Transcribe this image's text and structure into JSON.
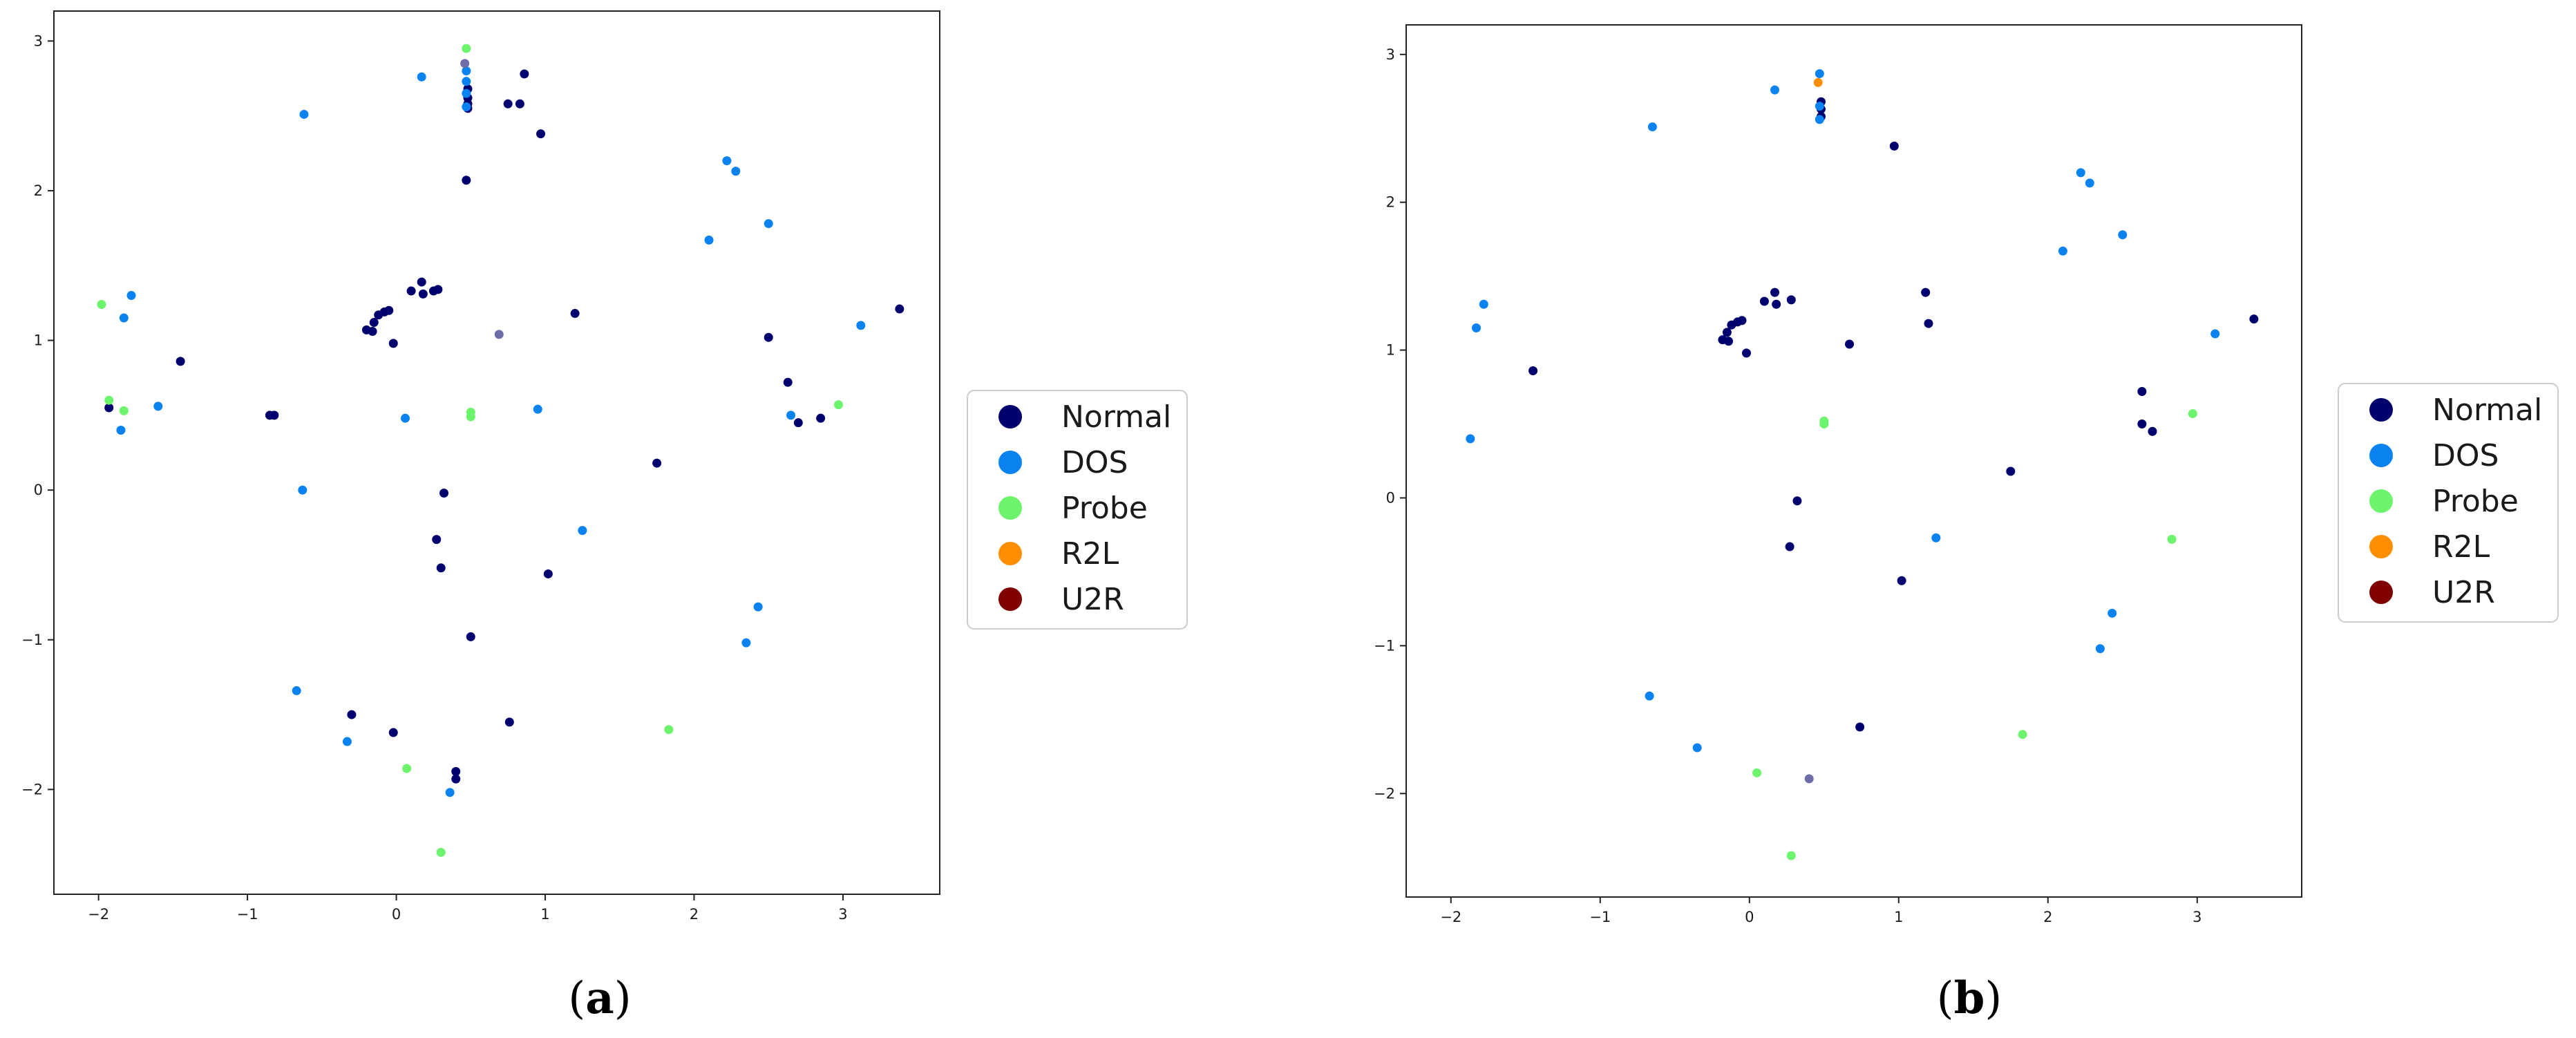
{
  "colors": {
    "Normal": "#00006e",
    "DOS": "#0a82f0",
    "Probe": "#6cf46c",
    "R2L": "#ff8f00",
    "U2R": "#800000",
    "mixed": "#6d6daa"
  },
  "chart_data": [
    {
      "type": "scatter",
      "caption": {
        "open": "(",
        "letter": "a",
        "close": ")"
      },
      "xlim": [
        -2.3,
        3.65
      ],
      "ylim": [
        -2.7,
        3.2
      ],
      "x_ticks": [
        -2,
        -1,
        0,
        1,
        2,
        3
      ],
      "x_tick_labels": [
        "−2",
        "−1",
        "0",
        "1",
        "2",
        "3"
      ],
      "y_ticks": [
        -2,
        -1,
        0,
        1,
        2,
        3
      ],
      "y_tick_labels": [
        "−2",
        "−1",
        "0",
        "1",
        "2",
        "3"
      ],
      "legend_placement": "right",
      "legend": [
        "Normal",
        "DOS",
        "Probe",
        "R2L",
        "U2R"
      ],
      "series": [
        {
          "name": "Normal",
          "points": [
            [
              0.48,
              2.68
            ],
            [
              0.48,
              2.62
            ],
            [
              0.48,
              2.58
            ],
            [
              0.48,
              2.55
            ],
            [
              0.75,
              2.58
            ],
            [
              0.83,
              2.58
            ],
            [
              0.86,
              2.78
            ],
            [
              0.97,
              2.38
            ],
            [
              0.47,
              2.07
            ],
            [
              -0.12,
              1.17
            ],
            [
              -0.08,
              1.19
            ],
            [
              -0.05,
              1.2
            ],
            [
              -0.15,
              1.12
            ],
            [
              -0.2,
              1.07
            ],
            [
              -0.16,
              1.06
            ],
            [
              -0.02,
              0.98
            ],
            [
              0.1,
              1.33
            ],
            [
              0.17,
              1.39
            ],
            [
              0.18,
              1.31
            ],
            [
              0.25,
              1.33
            ],
            [
              0.28,
              1.34
            ],
            [
              1.2,
              1.18
            ],
            [
              -1.45,
              0.86
            ],
            [
              -0.85,
              0.5
            ],
            [
              -0.82,
              0.5
            ],
            [
              -1.93,
              0.55
            ],
            [
              2.5,
              1.02
            ],
            [
              2.63,
              0.72
            ],
            [
              2.7,
              0.45
            ],
            [
              2.85,
              0.48
            ],
            [
              3.38,
              1.21
            ],
            [
              0.32,
              -0.02
            ],
            [
              0.27,
              -0.33
            ],
            [
              0.3,
              -0.52
            ],
            [
              1.02,
              -0.56
            ],
            [
              1.75,
              0.18
            ],
            [
              0.5,
              -0.98
            ],
            [
              -0.3,
              -1.5
            ],
            [
              -0.02,
              -1.62
            ],
            [
              0.76,
              -1.55
            ],
            [
              0.4,
              -1.88
            ],
            [
              0.4,
              -1.93
            ]
          ]
        },
        {
          "name": "DOS",
          "points": [
            [
              -0.62,
              2.51
            ],
            [
              0.17,
              2.76
            ],
            [
              0.47,
              2.8
            ],
            [
              0.47,
              2.73
            ],
            [
              0.47,
              2.65
            ],
            [
              0.47,
              2.56
            ],
            [
              2.22,
              2.2
            ],
            [
              2.28,
              2.13
            ],
            [
              2.1,
              1.67
            ],
            [
              2.5,
              1.78
            ],
            [
              -1.78,
              1.3
            ],
            [
              -1.83,
              1.15
            ],
            [
              -1.6,
              0.56
            ],
            [
              -1.85,
              0.4
            ],
            [
              0.06,
              0.48
            ],
            [
              0.95,
              0.54
            ],
            [
              2.65,
              0.5
            ],
            [
              3.12,
              1.1
            ],
            [
              -0.63,
              0.0
            ],
            [
              1.25,
              -0.27
            ],
            [
              2.43,
              -0.78
            ],
            [
              2.35,
              -1.02
            ],
            [
              -0.67,
              -1.34
            ],
            [
              -0.33,
              -1.68
            ],
            [
              0.36,
              -2.02
            ]
          ]
        },
        {
          "name": "Probe",
          "points": [
            [
              0.47,
              2.95
            ],
            [
              -1.98,
              1.24
            ],
            [
              -1.93,
              0.6
            ],
            [
              -1.83,
              0.53
            ],
            [
              0.5,
              0.52
            ],
            [
              0.5,
              0.49
            ],
            [
              2.97,
              0.57
            ],
            [
              1.83,
              -1.6
            ],
            [
              0.07,
              -1.86
            ],
            [
              0.3,
              -2.42
            ]
          ]
        },
        {
          "name": "mixed",
          "points": [
            [
              0.46,
              2.85
            ],
            [
              0.69,
              1.04
            ]
          ]
        }
      ]
    },
    {
      "type": "scatter",
      "caption": {
        "open": "(",
        "letter": "b",
        "close": ")"
      },
      "xlim": [
        -2.3,
        3.7
      ],
      "ylim": [
        -2.7,
        3.2
      ],
      "x_ticks": [
        -2,
        -1,
        0,
        1,
        2,
        3
      ],
      "x_tick_labels": [
        "−2",
        "−1",
        "0",
        "1",
        "2",
        "3"
      ],
      "y_ticks": [
        -2,
        -1,
        0,
        1,
        2,
        3
      ],
      "y_tick_labels": [
        "−2",
        "−1",
        "0",
        "1",
        "2",
        "3"
      ],
      "legend_placement": "right",
      "legend": [
        "Normal",
        "DOS",
        "Probe",
        "R2L",
        "U2R"
      ],
      "series": [
        {
          "name": "Normal",
          "points": [
            [
              0.48,
              2.68
            ],
            [
              0.48,
              2.63
            ],
            [
              0.48,
              2.58
            ],
            [
              0.97,
              2.38
            ],
            [
              -0.12,
              1.17
            ],
            [
              -0.08,
              1.19
            ],
            [
              -0.05,
              1.2
            ],
            [
              -0.15,
              1.12
            ],
            [
              -0.18,
              1.07
            ],
            [
              -0.14,
              1.06
            ],
            [
              -0.02,
              0.98
            ],
            [
              0.1,
              1.33
            ],
            [
              0.17,
              1.39
            ],
            [
              0.18,
              1.31
            ],
            [
              0.28,
              1.34
            ],
            [
              0.67,
              1.04
            ],
            [
              1.18,
              1.39
            ],
            [
              1.2,
              1.18
            ],
            [
              -1.45,
              0.86
            ],
            [
              2.63,
              0.72
            ],
            [
              2.63,
              0.5
            ],
            [
              2.7,
              0.45
            ],
            [
              3.38,
              1.21
            ],
            [
              1.75,
              0.18
            ],
            [
              0.32,
              -0.02
            ],
            [
              0.27,
              -0.33
            ],
            [
              1.02,
              -0.56
            ],
            [
              0.74,
              -1.55
            ]
          ]
        },
        {
          "name": "DOS",
          "points": [
            [
              0.47,
              2.87
            ],
            [
              0.47,
              2.65
            ],
            [
              0.47,
              2.56
            ],
            [
              0.17,
              2.76
            ],
            [
              -0.65,
              2.51
            ],
            [
              2.22,
              2.2
            ],
            [
              2.28,
              2.13
            ],
            [
              2.1,
              1.67
            ],
            [
              2.5,
              1.78
            ],
            [
              -1.78,
              1.31
            ],
            [
              -1.83,
              1.15
            ],
            [
              -1.87,
              0.4
            ],
            [
              3.12,
              1.11
            ],
            [
              1.25,
              -0.27
            ],
            [
              2.43,
              -0.78
            ],
            [
              2.35,
              -1.02
            ],
            [
              -0.67,
              -1.34
            ],
            [
              -0.35,
              -1.69
            ]
          ]
        },
        {
          "name": "Probe",
          "points": [
            [
              0.5,
              0.52
            ],
            [
              0.5,
              0.5
            ],
            [
              2.97,
              0.57
            ],
            [
              2.83,
              -0.28
            ],
            [
              1.83,
              -1.6
            ],
            [
              0.05,
              -1.86
            ],
            [
              0.28,
              -2.42
            ]
          ]
        },
        {
          "name": "R2L",
          "points": [
            [
              0.46,
              2.81
            ]
          ]
        },
        {
          "name": "mixed",
          "points": [
            [
              0.4,
              -1.9
            ]
          ]
        }
      ]
    }
  ]
}
